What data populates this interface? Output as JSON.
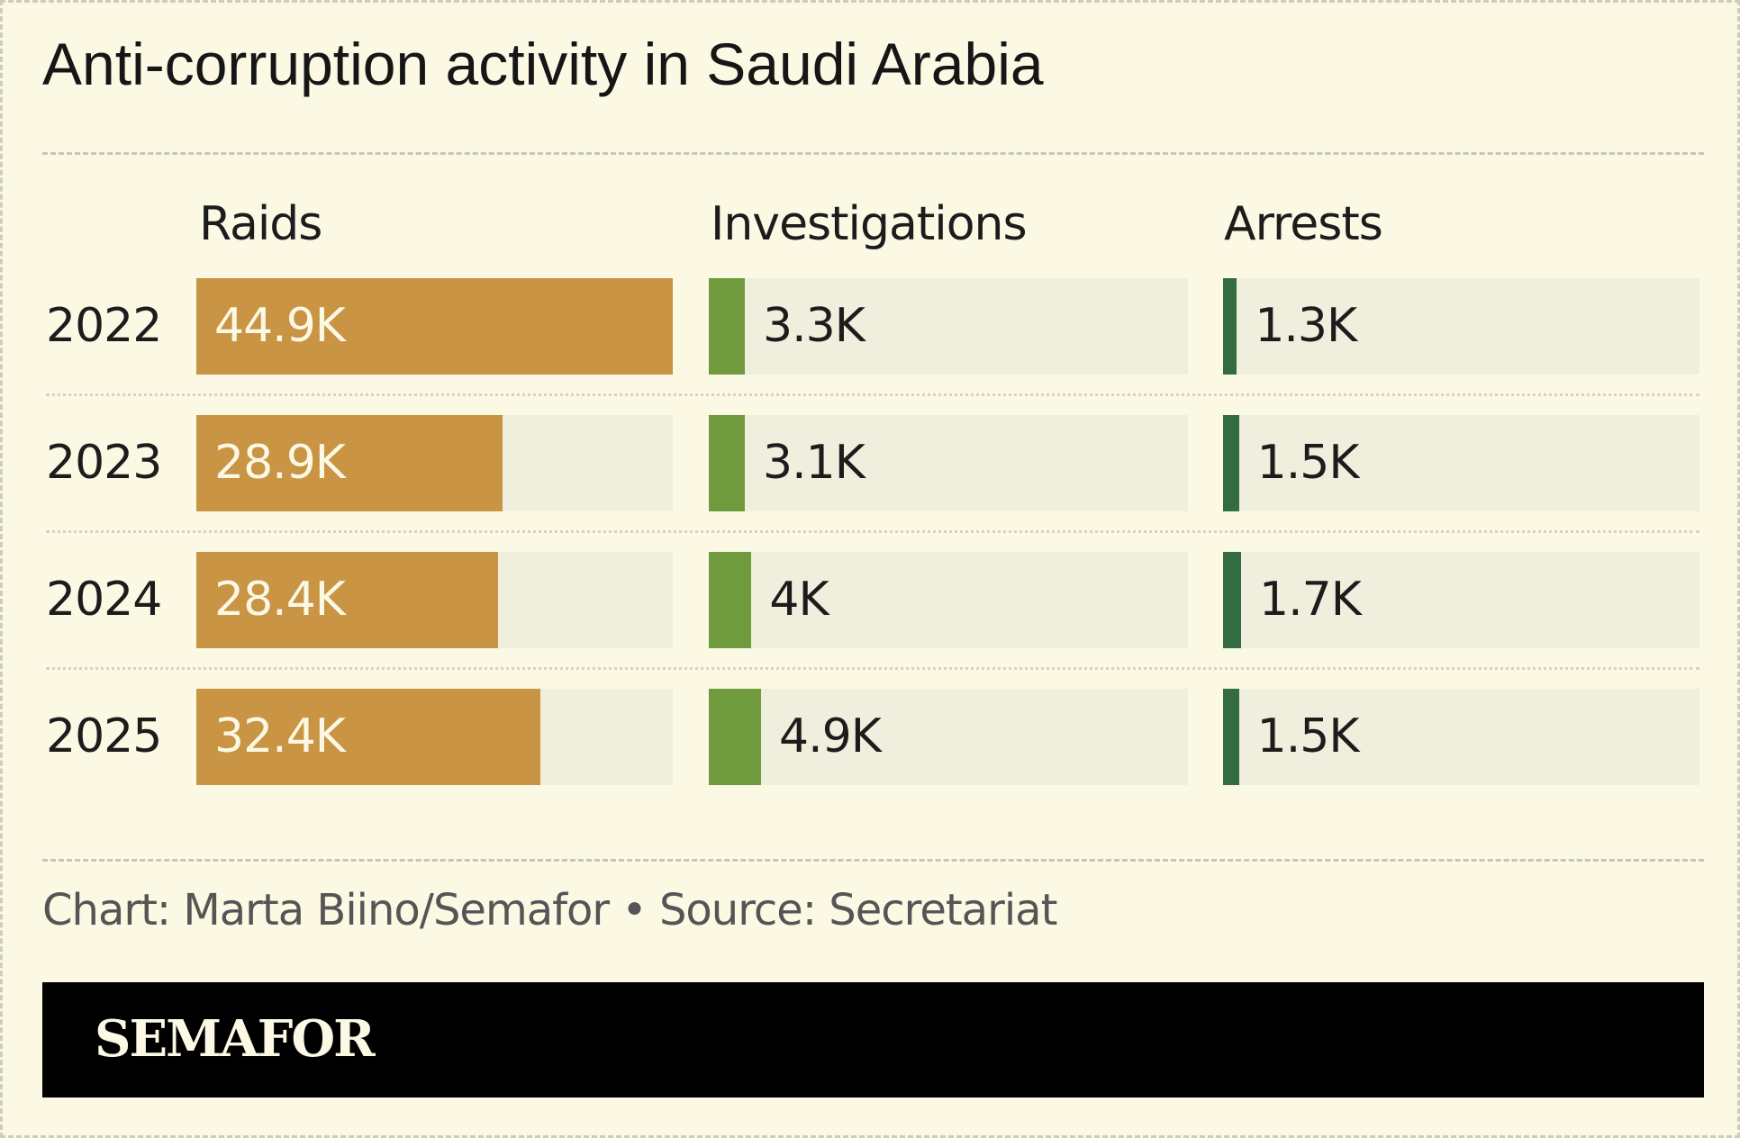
{
  "title": "Anti-corruption activity in Saudi Arabia",
  "credit": "Chart: Marta Biino/Semafor • Source: Secretariat",
  "logo": "SEMAFOR",
  "colors": {
    "background": "#fbf8e4",
    "track": "#f0eedc",
    "raids": "#c99443",
    "investigations": "#6f9a3d",
    "arrests": "#336c40",
    "footer": "#000000"
  },
  "chart_data": {
    "type": "bar",
    "categories": [
      "2022",
      "2023",
      "2024",
      "2025"
    ],
    "series": [
      {
        "name": "Raids",
        "values": [
          44.9,
          28.9,
          28.4,
          32.4
        ],
        "labels": [
          "44.9K",
          "28.9K",
          "28.4K",
          "32.4K"
        ],
        "max": 44.9
      },
      {
        "name": "Investigations",
        "values": [
          3.3,
          3.1,
          4.0,
          4.9
        ],
        "labels": [
          "3.3K",
          "3.1K",
          "4K",
          "4.9K"
        ],
        "max": 44.9
      },
      {
        "name": "Arrests",
        "values": [
          1.3,
          1.5,
          1.7,
          1.5
        ],
        "labels": [
          "1.3K",
          "1.5K",
          "1.7K",
          "1.5K"
        ],
        "max": 44.9
      }
    ],
    "unit": "K"
  }
}
